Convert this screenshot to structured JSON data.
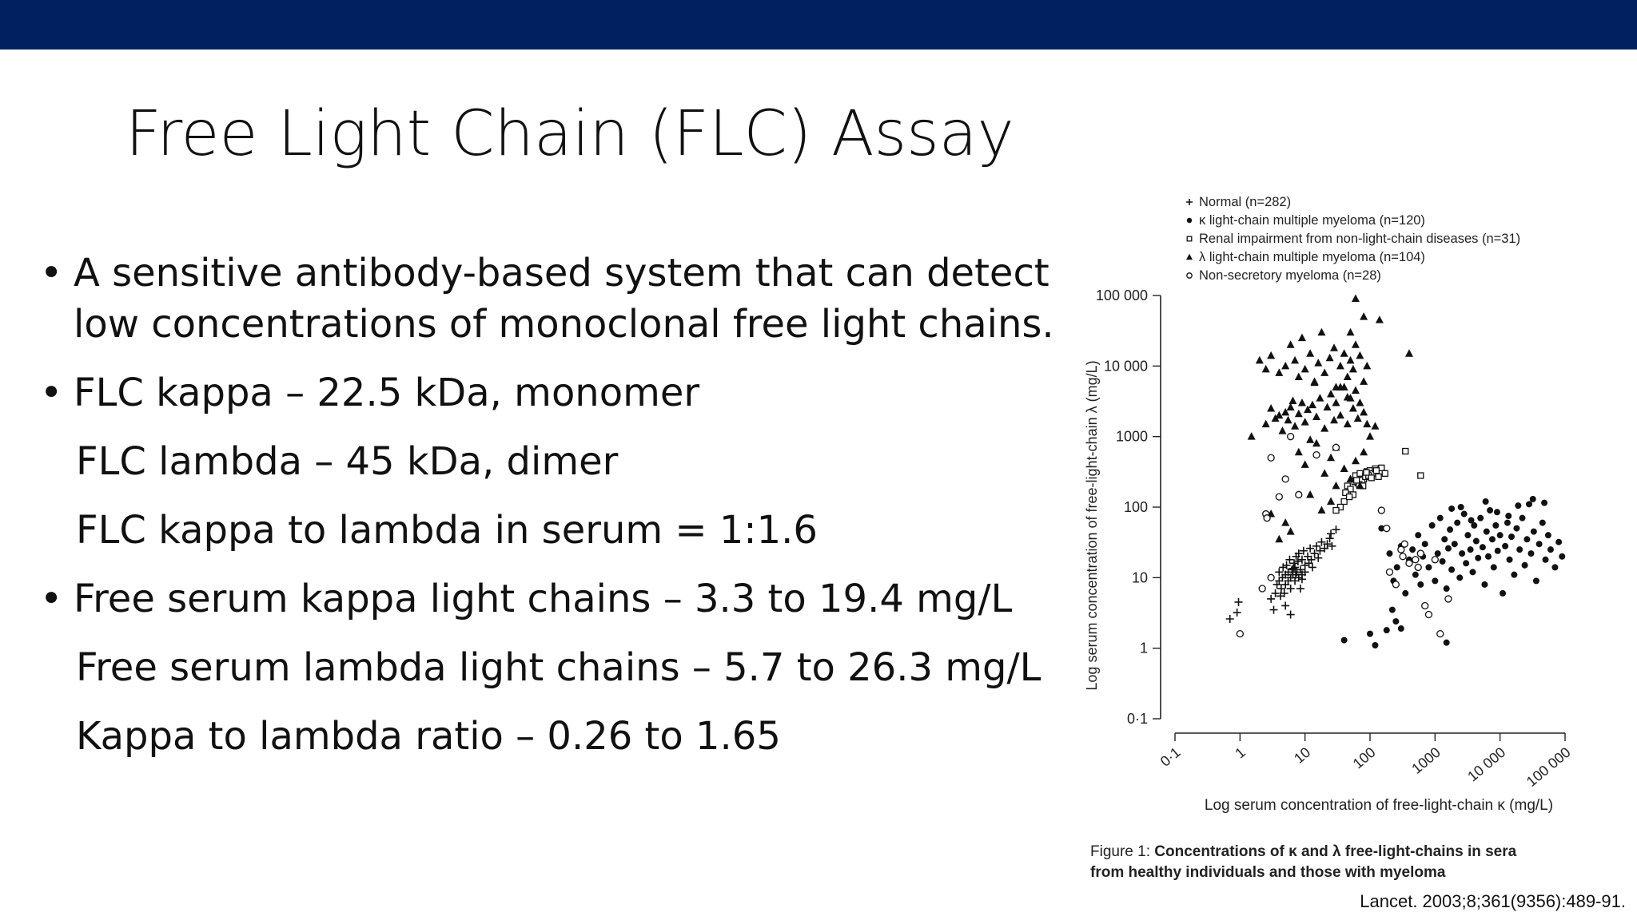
{
  "title": "Free Light Chain (FLC) Assay",
  "bullets": [
    {
      "bullet": "•",
      "lines": [
        "A sensitive antibody-based system that can detect",
        "low concentrations of monoclonal free light chains."
      ]
    },
    {
      "bullet": "•",
      "lines": [
        "FLC kappa – 22.5 kDa, monomer",
        "FLC lambda – 45 kDa, dimer",
        "FLC kappa to lambda in serum = 1:1.6"
      ]
    },
    {
      "bullet": "•",
      "lines": [
        "Free serum kappa light chains – 3.3 to 19.4 mg/L",
        "Free serum lambda light chains – 5.7 to 26.3 mg/L",
        "Kappa to lambda ratio – 0.26 to 1.65"
      ]
    }
  ],
  "citation": "Lancet. 2003;8;361(9356):489-91.",
  "figure_caption": {
    "prefix": "Figure 1: ",
    "line1_bold": "Concentrations of κ and λ free-light-chains in sera",
    "line2_bold": "from healthy individuals and those with myeloma"
  },
  "chart_data": {
    "type": "scatter",
    "xlabel": "Log serum concentration of free-light-chain κ (mg/L)",
    "ylabel": "Log serum concentration of free-light-chain λ (mg/L)",
    "x_scale": "log",
    "y_scale": "log",
    "xlim": [
      0.1,
      100000
    ],
    "ylim": [
      0.1,
      100000
    ],
    "x_ticks": [
      "0·1",
      "1",
      "10",
      "100",
      "1000",
      "10 000",
      "100 000"
    ],
    "y_ticks": [
      "100 000",
      "10 000",
      "1000",
      "100",
      "10",
      "1",
      "0·1"
    ],
    "grid": false,
    "legend_position": "top",
    "series": [
      {
        "name": "Normal (n=282)",
        "marker": "plus",
        "points": [
          [
            0.7,
            2.6
          ],
          [
            0.9,
            3.2
          ],
          [
            0.95,
            4.5
          ],
          [
            3,
            5
          ],
          [
            3.3,
            3.5
          ],
          [
            3.5,
            6
          ],
          [
            3.7,
            8
          ],
          [
            4,
            9
          ],
          [
            4,
            12
          ],
          [
            4.3,
            7
          ],
          [
            4.5,
            10
          ],
          [
            4.6,
            14
          ],
          [
            4.8,
            6
          ],
          [
            5,
            11
          ],
          [
            5,
            8
          ],
          [
            5.2,
            15
          ],
          [
            5.5,
            9
          ],
          [
            5.5,
            12
          ],
          [
            5.8,
            18
          ],
          [
            6,
            10
          ],
          [
            6,
            7
          ],
          [
            6.3,
            13
          ],
          [
            6.5,
            11
          ],
          [
            6.8,
            16
          ],
          [
            7,
            9
          ],
          [
            7,
            14
          ],
          [
            7.3,
            20
          ],
          [
            7.5,
            12
          ],
          [
            7.8,
            17
          ],
          [
            8,
            10
          ],
          [
            8,
            22
          ],
          [
            8.5,
            13
          ],
          [
            9,
            18
          ],
          [
            9,
            11
          ],
          [
            9.5,
            24
          ],
          [
            10,
            15
          ],
          [
            10,
            12
          ],
          [
            11,
            20
          ],
          [
            11.5,
            16
          ],
          [
            12,
            26
          ],
          [
            12.5,
            18
          ],
          [
            13,
            14
          ],
          [
            14,
            22
          ],
          [
            15,
            28
          ],
          [
            16,
            19
          ],
          [
            17,
            24
          ],
          [
            18,
            32
          ],
          [
            20,
            26
          ],
          [
            22,
            30
          ],
          [
            24,
            36
          ],
          [
            26,
            28
          ],
          [
            5,
            4
          ],
          [
            6,
            3
          ],
          [
            4.2,
            5.5
          ],
          [
            8.5,
            7
          ],
          [
            25,
            42
          ],
          [
            30,
            48
          ],
          [
            9,
            9.5
          ],
          [
            7.2,
            11
          ],
          [
            6.6,
            13.5
          ]
        ]
      },
      {
        "name": "κ light-chain multiple myeloma (n=120)",
        "marker": "filled-circle",
        "points": [
          [
            150,
            50
          ],
          [
            200,
            22
          ],
          [
            230,
            9
          ],
          [
            260,
            14
          ],
          [
            300,
            28
          ],
          [
            350,
            6
          ],
          [
            400,
            18
          ],
          [
            450,
            25
          ],
          [
            500,
            11
          ],
          [
            550,
            40
          ],
          [
            600,
            8
          ],
          [
            650,
            20
          ],
          [
            700,
            30
          ],
          [
            800,
            14
          ],
          [
            900,
            55
          ],
          [
            1000,
            9
          ],
          [
            1100,
            22
          ],
          [
            1200,
            70
          ],
          [
            1300,
            17
          ],
          [
            1400,
            35
          ],
          [
            1500,
            7
          ],
          [
            1600,
            26
          ],
          [
            1700,
            48
          ],
          [
            1800,
            13
          ],
          [
            2000,
            30
          ],
          [
            2200,
            60
          ],
          [
            2400,
            10
          ],
          [
            2600,
            22
          ],
          [
            2800,
            80
          ],
          [
            3000,
            16
          ],
          [
            3200,
            40
          ],
          [
            3500,
            25
          ],
          [
            3800,
            12
          ],
          [
            4000,
            55
          ],
          [
            4300,
            33
          ],
          [
            4600,
            19
          ],
          [
            5000,
            70
          ],
          [
            5400,
            27
          ],
          [
            5800,
            8
          ],
          [
            6200,
            45
          ],
          [
            6600,
            20
          ],
          [
            7000,
            90
          ],
          [
            7600,
            35
          ],
          [
            8000,
            14
          ],
          [
            8600,
            55
          ],
          [
            9200,
            24
          ],
          [
            10000,
            40
          ],
          [
            11000,
            6
          ],
          [
            12000,
            28
          ],
          [
            13000,
            60
          ],
          [
            14000,
            18
          ],
          [
            15000,
            38
          ],
          [
            16500,
            11
          ],
          [
            18000,
            50
          ],
          [
            20000,
            25
          ],
          [
            22000,
            70
          ],
          [
            24000,
            15
          ],
          [
            26000,
            35
          ],
          [
            28000,
            110
          ],
          [
            30000,
            22
          ],
          [
            33000,
            45
          ],
          [
            36000,
            9
          ],
          [
            40000,
            30
          ],
          [
            45000,
            60
          ],
          [
            50000,
            18
          ],
          [
            55000,
            40
          ],
          [
            60000,
            25
          ],
          [
            70000,
            14
          ],
          [
            80000,
            32
          ],
          [
            90000,
            20
          ],
          [
            100,
            1.6
          ],
          [
            120,
            1.1
          ],
          [
            180,
            1.8
          ],
          [
            250,
            2.4
          ],
          [
            300,
            1.9
          ],
          [
            220,
            3.5
          ],
          [
            1500,
            1.2
          ],
          [
            40,
            1.3
          ],
          [
            1800,
            95
          ],
          [
            2500,
            100
          ],
          [
            6000,
            120
          ],
          [
            19000,
            105
          ],
          [
            32000,
            130
          ],
          [
            48000,
            115
          ],
          [
            9000,
            85
          ],
          [
            13500,
            75
          ],
          [
            3600,
            65
          ]
        ]
      },
      {
        "name": "Renal impairment from non-light-chain diseases (n=31)",
        "marker": "open-square",
        "points": [
          [
            60,
            280
          ],
          [
            70,
            300
          ],
          [
            80,
            250
          ],
          [
            90,
            320
          ],
          [
            100,
            330
          ],
          [
            110,
            300
          ],
          [
            120,
            350
          ],
          [
            150,
            360
          ],
          [
            170,
            300
          ],
          [
            45,
            200
          ],
          [
            50,
            180
          ],
          [
            55,
            150
          ],
          [
            40,
            120
          ],
          [
            35,
            100
          ],
          [
            30,
            90
          ],
          [
            65,
            220
          ],
          [
            75,
            240
          ],
          [
            85,
            270
          ],
          [
            95,
            280
          ],
          [
            105,
            260
          ],
          [
            350,
            620
          ],
          [
            600,
            280
          ],
          [
            42,
            160
          ],
          [
            48,
            140
          ],
          [
            58,
            230
          ],
          [
            68,
            210
          ],
          [
            78,
            200
          ],
          [
            88,
            310
          ],
          [
            135,
            270
          ],
          [
            125,
            330
          ],
          [
            62,
            240
          ]
        ]
      },
      {
        "name": "λ light-chain multiple myeloma (n=104)",
        "marker": "filled-triangle",
        "points": [
          [
            60,
            90000
          ],
          [
            80,
            50000
          ],
          [
            50,
            30000
          ],
          [
            140,
            45000
          ],
          [
            400,
            15000
          ],
          [
            2,
            12000
          ],
          [
            2.5,
            9000
          ],
          [
            3,
            14000
          ],
          [
            4,
            8000
          ],
          [
            5,
            10000
          ],
          [
            6,
            20000
          ],
          [
            7,
            12000
          ],
          [
            8,
            7000
          ],
          [
            9,
            25000
          ],
          [
            10,
            9000
          ],
          [
            12,
            15000
          ],
          [
            14,
            6000
          ],
          [
            16,
            11000
          ],
          [
            18,
            30000
          ],
          [
            20,
            8000
          ],
          [
            24,
            13000
          ],
          [
            28,
            18000
          ],
          [
            30,
            5000
          ],
          [
            35,
            10000
          ],
          [
            40,
            15000
          ],
          [
            45,
            7000
          ],
          [
            50,
            12000
          ],
          [
            55,
            9000
          ],
          [
            60,
            20000
          ],
          [
            70,
            14000
          ],
          [
            80,
            6000
          ],
          [
            90,
            10000
          ],
          [
            1.5,
            1000
          ],
          [
            2.5,
            1500
          ],
          [
            3,
            2500
          ],
          [
            3.5,
            1800
          ],
          [
            4,
            2000
          ],
          [
            4.5,
            1200
          ],
          [
            5,
            2200
          ],
          [
            5.5,
            1700
          ],
          [
            6,
            2600
          ],
          [
            7,
            1400
          ],
          [
            8,
            2100
          ],
          [
            9,
            3000
          ],
          [
            10,
            1600
          ],
          [
            11,
            2400
          ],
          [
            12,
            900
          ],
          [
            13,
            2800
          ],
          [
            15,
            1900
          ],
          [
            17,
            3500
          ],
          [
            20,
            1300
          ],
          [
            22,
            2600
          ],
          [
            25,
            4000
          ],
          [
            28,
            1700
          ],
          [
            30,
            3000
          ],
          [
            35,
            2000
          ],
          [
            40,
            5000
          ],
          [
            45,
            1500
          ],
          [
            50,
            3500
          ],
          [
            55,
            2500
          ],
          [
            60,
            4500
          ],
          [
            65,
            1800
          ],
          [
            70,
            3000
          ],
          [
            80,
            2200
          ],
          [
            90,
            1500
          ],
          [
            100,
            1000
          ],
          [
            120,
            1400
          ],
          [
            8,
            600
          ],
          [
            10,
            400
          ],
          [
            15,
            800
          ],
          [
            20,
            300
          ],
          [
            25,
            500
          ],
          [
            30,
            700
          ],
          [
            40,
            350
          ],
          [
            50,
            250
          ],
          [
            60,
            450
          ],
          [
            70,
            200
          ],
          [
            80,
            600
          ],
          [
            12,
            150
          ],
          [
            18,
            90
          ],
          [
            25,
            120
          ],
          [
            30,
            200
          ],
          [
            3,
            80
          ],
          [
            5,
            60
          ],
          [
            4,
            35
          ],
          [
            6,
            45
          ],
          [
            35,
            5000
          ],
          [
            45,
            3600
          ],
          [
            6.5,
            3200
          ],
          [
            14,
            5800
          ]
        ]
      },
      {
        "name": "Non-secretory myeloma (n=28)",
        "marker": "open-circle",
        "points": [
          [
            3,
            500
          ],
          [
            4,
            140
          ],
          [
            5,
            250
          ],
          [
            6,
            1000
          ],
          [
            8,
            150
          ],
          [
            15,
            550
          ],
          [
            30,
            700
          ],
          [
            2.5,
            80
          ],
          [
            2.6,
            70
          ],
          [
            1,
            1.6
          ],
          [
            3,
            10
          ],
          [
            2.2,
            7
          ],
          [
            150,
            90
          ],
          [
            180,
            50
          ],
          [
            200,
            12
          ],
          [
            250,
            8
          ],
          [
            300,
            25
          ],
          [
            320,
            20
          ],
          [
            340,
            30
          ],
          [
            400,
            16
          ],
          [
            500,
            18
          ],
          [
            550,
            14
          ],
          [
            600,
            22
          ],
          [
            700,
            4
          ],
          [
            800,
            3
          ],
          [
            1000,
            18
          ],
          [
            1200,
            1.6
          ],
          [
            1600,
            5
          ]
        ]
      }
    ]
  }
}
